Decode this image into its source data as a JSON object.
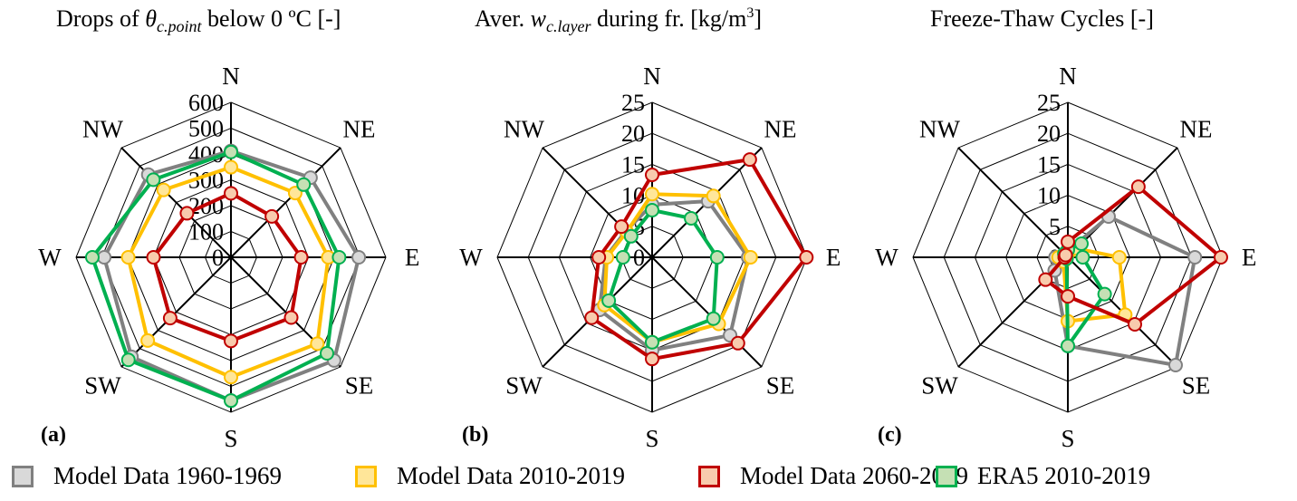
{
  "legend": [
    {
      "label": "Model Data 1960-1969",
      "stroke": "#808080",
      "fill": "#d9d9d9"
    },
    {
      "label": "Model Data 2010-2019",
      "stroke": "#ffc000",
      "fill": "#ffe699"
    },
    {
      "label": "Model Data 2060-2069",
      "stroke": "#c00000",
      "fill": "#f8cbad"
    },
    {
      "label": "ERA5 2010-2019",
      "stroke": "#00b050",
      "fill": "#c5e0b4"
    }
  ],
  "chart_data": [
    {
      "type": "radar",
      "panel": "(a)",
      "title_parts": {
        "pre": "Drops of ",
        "symbol": "θ",
        "sub": "c.point",
        "post": " below 0 ºC [-]"
      },
      "categories": [
        "N",
        "NE",
        "E",
        "SE",
        "S",
        "SW",
        "W",
        "NW"
      ],
      "rlim": [
        0,
        600
      ],
      "ticks": [
        0,
        100,
        200,
        300,
        400,
        500,
        600
      ],
      "tick_labels": [
        "0",
        "100",
        "200",
        "300",
        "400",
        "500",
        "600"
      ],
      "grid": true,
      "series": [
        {
          "name": "Model Data 1960-1969",
          "values": [
            412,
            436,
            495,
            565,
            555,
            545,
            491,
            453
          ]
        },
        {
          "name": "Model Data 2010-2019",
          "values": [
            349,
            352,
            377,
            473,
            464,
            456,
            398,
            369
          ]
        },
        {
          "name": "Model Data 2060-2069",
          "values": [
            248,
            224,
            272,
            330,
            324,
            333,
            300,
            241
          ]
        },
        {
          "name": "ERA5 2010-2019",
          "values": [
            408,
            398,
            419,
            526,
            555,
            562,
            537,
            425
          ]
        }
      ]
    },
    {
      "type": "radar",
      "panel": "(b)",
      "title_parts": {
        "pre": "Aver. ",
        "symbol": "w",
        "sub": "c.layer",
        "post": " during fr. [kg/m",
        "sup": "3",
        "post2": "]"
      },
      "categories": [
        "N",
        "NE",
        "E",
        "SE",
        "S",
        "SW",
        "W",
        "NW"
      ],
      "rlim": [
        0,
        25
      ],
      "ticks": [
        0,
        5,
        10,
        15,
        20,
        25
      ],
      "tick_labels": [
        "0",
        "5",
        "10",
        "15",
        "20",
        "25"
      ],
      "grid": true,
      "series": [
        {
          "name": "Model Data 1960-1969",
          "values": [
            8.5,
            12.8,
            15.5,
            17.8,
            15.0,
            12.0,
            7.5,
            6.0
          ]
        },
        {
          "name": "Model Data 2010-2019",
          "values": [
            10.2,
            14.0,
            15.9,
            15.2,
            13.7,
            10.9,
            7.3,
            5.8
          ]
        },
        {
          "name": "Model Data 2060-2069",
          "values": [
            13.3,
            22.3,
            24.9,
            19.6,
            16.4,
            13.8,
            8.6,
            7.0
          ]
        },
        {
          "name": "ERA5 2010-2019",
          "values": [
            7.6,
            8.9,
            10.5,
            14.0,
            13.7,
            9.9,
            4.7,
            4.8
          ]
        }
      ]
    },
    {
      "type": "radar",
      "panel": "(c)",
      "title_parts": {
        "pre": "Freeze-Thaw Cycles [-]",
        "symbol": "",
        "sub": "",
        "post": ""
      },
      "categories": [
        "N",
        "NE",
        "E",
        "SE",
        "S",
        "SW",
        "W",
        "NW"
      ],
      "rlim": [
        0,
        25
      ],
      "ticks": [
        0,
        5,
        10,
        15,
        20,
        25
      ],
      "tick_labels": [
        "0",
        "5",
        "10",
        "15",
        "20",
        "25"
      ],
      "grid": true,
      "series": [
        {
          "name": "Model Data 1960-1969",
          "values": [
            1.0,
            9.3,
            20.5,
            24.6,
            14.3,
            3.0,
            2.0,
            0.8
          ]
        },
        {
          "name": "Model Data 2010-2019",
          "values": [
            0.5,
            2.0,
            8.3,
            13.1,
            10.3,
            1.0,
            1.5,
            0.5
          ]
        },
        {
          "name": "Model Data 2060-2069",
          "values": [
            2.5,
            16.1,
            24.7,
            15.3,
            6.3,
            5.1,
            0.5,
            0.5
          ]
        },
        {
          "name": "ERA5 2010-2019",
          "values": [
            1.2,
            3.1,
            2.4,
            8.4,
            14.3,
            0.3,
            0.5,
            0.8
          ]
        }
      ]
    }
  ]
}
